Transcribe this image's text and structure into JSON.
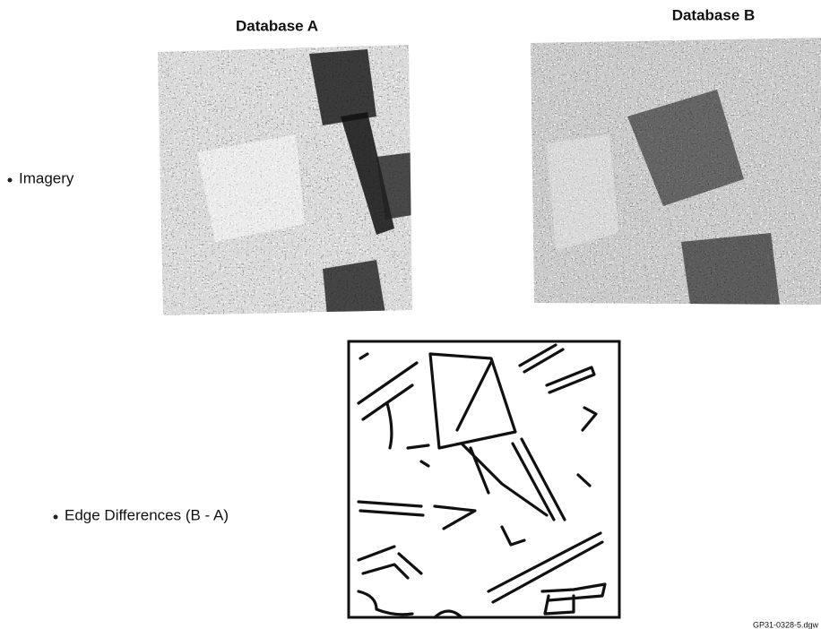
{
  "columns": [
    "Database A",
    "Database B"
  ],
  "rows": [
    "Imagery",
    "Edge Differences (B - A)"
  ],
  "footer": "GP31-0328-5.dgw"
}
